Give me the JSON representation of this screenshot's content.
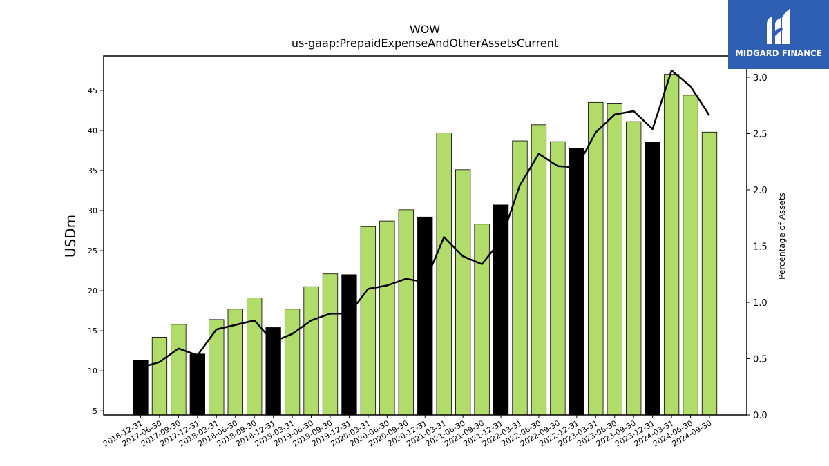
{
  "chart_data": {
    "type": "bar",
    "title": "WOW",
    "subtitle": "us-gaap:PrepaidExpenseAndOtherAssetsCurrent",
    "ylabel": "USDm",
    "y2label": "Percentage of Assets",
    "ylim": [
      4.5,
      49.3
    ],
    "y2lim": [
      0.0,
      3.19
    ],
    "yticks": [
      5,
      10,
      15,
      20,
      25,
      30,
      35,
      40,
      45
    ],
    "y2ticks": [
      0.0,
      0.5,
      1.0,
      1.5,
      2.0,
      2.5,
      3.0
    ],
    "categories": [
      "2016-12-31",
      "2017-06-30",
      "2017-09-30",
      "2017-12-31",
      "2018-03-31",
      "2018-06-30",
      "2018-09-30",
      "2018-12-31",
      "2019-03-31",
      "2019-06-30",
      "2019-09-30",
      "2019-12-31",
      "2020-03-31",
      "2020-06-30",
      "2020-09-30",
      "2020-12-31",
      "2021-03-31",
      "2021-06-30",
      "2021-09-30",
      "2021-12-31",
      "2022-03-31",
      "2022-06-30",
      "2022-09-30",
      "2022-12-31",
      "2023-03-31",
      "2023-06-30",
      "2023-09-30",
      "2023-12-31",
      "2024-03-31",
      "2024-06-30",
      "2024-09-30"
    ],
    "bar_values": [
      11.3,
      14.2,
      15.8,
      12.1,
      16.4,
      17.7,
      19.1,
      15.4,
      17.7,
      20.5,
      22.1,
      22.0,
      28.0,
      28.7,
      30.1,
      29.2,
      39.7,
      35.1,
      28.3,
      30.7,
      38.7,
      40.7,
      38.6,
      37.8,
      43.5,
      43.4,
      41.1,
      38.5,
      47.0,
      44.4,
      39.8
    ],
    "bar_is_year_end": [
      true,
      false,
      false,
      true,
      false,
      false,
      false,
      true,
      false,
      false,
      false,
      true,
      false,
      false,
      false,
      true,
      false,
      false,
      false,
      true,
      false,
      false,
      false,
      true,
      false,
      false,
      false,
      true,
      false,
      false,
      false
    ],
    "line_values": [
      0.42,
      0.47,
      0.59,
      0.53,
      0.76,
      0.8,
      0.84,
      0.65,
      0.72,
      0.84,
      0.9,
      0.9,
      1.12,
      1.15,
      1.21,
      1.18,
      1.58,
      1.41,
      1.34,
      1.55,
      2.04,
      2.32,
      2.21,
      2.2,
      2.51,
      2.67,
      2.7,
      2.54,
      3.06,
      2.92,
      2.66
    ],
    "colors": {
      "bar": "#b2dc6a",
      "bar_year_end": "#000000",
      "line": "#000000"
    },
    "grid": false
  },
  "logo": {
    "text": "MIDGARD FINANCE"
  }
}
